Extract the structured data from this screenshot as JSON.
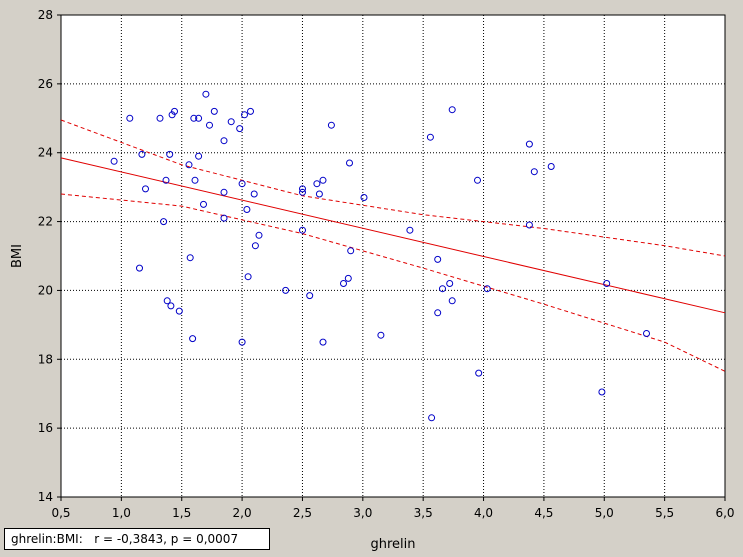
{
  "chart_data": {
    "type": "scatter",
    "xlabel": "ghrelin",
    "ylabel": "BMI",
    "xlim": [
      0.5,
      6.0
    ],
    "ylim": [
      14,
      28
    ],
    "xticks": [
      "0,5",
      "1,0",
      "1,5",
      "2,0",
      "2,5",
      "3,0",
      "3,5",
      "4,0",
      "4,5",
      "5,0",
      "5,5",
      "6,0"
    ],
    "yticks": [
      "14",
      "16",
      "18",
      "20",
      "22",
      "24",
      "26",
      "28"
    ],
    "grid": true,
    "annotation": {
      "pair": "ghrelin:BMI:",
      "stats": "r = -0,3843, p = 0,0007"
    },
    "regression": {
      "x": [
        0.5,
        6.0
      ],
      "y": [
        23.85,
        19.35
      ],
      "color": "#e00000"
    },
    "confidence_band": {
      "upper": {
        "x": [
          0.5,
          1.5,
          2.5,
          3.5,
          4.5,
          5.5,
          6.0
        ],
        "y": [
          24.95,
          23.65,
          22.75,
          22.2,
          21.8,
          21.3,
          21.0
        ]
      },
      "lower": {
        "x": [
          0.5,
          1.5,
          2.5,
          3.5,
          4.5,
          5.5,
          6.0
        ],
        "y": [
          22.8,
          22.45,
          21.65,
          20.65,
          19.6,
          18.5,
          17.65
        ]
      },
      "color": "#e00000"
    },
    "series": [
      {
        "marker_color": "#0000c8",
        "points": [
          [
            0.94,
            23.75
          ],
          [
            1.07,
            25.0
          ],
          [
            1.15,
            20.65
          ],
          [
            1.17,
            23.95
          ],
          [
            1.2,
            22.95
          ],
          [
            1.32,
            25.0
          ],
          [
            1.35,
            22.0
          ],
          [
            1.37,
            23.2
          ],
          [
            1.38,
            19.7
          ],
          [
            1.4,
            23.95
          ],
          [
            1.41,
            19.55
          ],
          [
            1.42,
            25.1
          ],
          [
            1.44,
            25.2
          ],
          [
            1.48,
            19.4
          ],
          [
            1.56,
            23.65
          ],
          [
            1.57,
            20.95
          ],
          [
            1.59,
            18.6
          ],
          [
            1.6,
            25.0
          ],
          [
            1.61,
            23.2
          ],
          [
            1.64,
            25.0
          ],
          [
            1.64,
            23.9
          ],
          [
            1.68,
            22.5
          ],
          [
            1.7,
            25.7
          ],
          [
            1.73,
            24.8
          ],
          [
            1.77,
            25.2
          ],
          [
            1.85,
            24.35
          ],
          [
            1.85,
            22.85
          ],
          [
            1.85,
            22.1
          ],
          [
            1.91,
            24.9
          ],
          [
            1.98,
            24.7
          ],
          [
            2.0,
            23.1
          ],
          [
            2.0,
            18.5
          ],
          [
            2.02,
            25.1
          ],
          [
            2.04,
            22.35
          ],
          [
            2.05,
            20.4
          ],
          [
            2.07,
            25.2
          ],
          [
            2.1,
            22.8
          ],
          [
            2.11,
            21.3
          ],
          [
            2.14,
            21.6
          ],
          [
            2.36,
            20.0
          ],
          [
            2.5,
            22.85
          ],
          [
            2.5,
            22.95
          ],
          [
            2.5,
            21.75
          ],
          [
            2.56,
            19.85
          ],
          [
            2.62,
            23.1
          ],
          [
            2.64,
            22.8
          ],
          [
            2.67,
            23.2
          ],
          [
            2.67,
            18.5
          ],
          [
            2.74,
            24.8
          ],
          [
            2.84,
            20.2
          ],
          [
            2.88,
            20.35
          ],
          [
            2.89,
            23.7
          ],
          [
            2.9,
            21.15
          ],
          [
            3.01,
            22.7
          ],
          [
            3.15,
            18.7
          ],
          [
            3.39,
            21.75
          ],
          [
            3.56,
            24.45
          ],
          [
            3.57,
            16.3
          ],
          [
            3.62,
            20.9
          ],
          [
            3.62,
            19.35
          ],
          [
            3.66,
            20.05
          ],
          [
            3.72,
            20.2
          ],
          [
            3.74,
            19.7
          ],
          [
            3.74,
            25.25
          ],
          [
            3.95,
            23.2
          ],
          [
            3.96,
            17.6
          ],
          [
            4.03,
            20.05
          ],
          [
            4.38,
            24.25
          ],
          [
            4.38,
            21.9
          ],
          [
            4.42,
            23.45
          ],
          [
            4.56,
            23.6
          ],
          [
            4.98,
            17.05
          ],
          [
            5.02,
            20.2
          ],
          [
            5.35,
            18.75
          ]
        ]
      }
    ]
  }
}
